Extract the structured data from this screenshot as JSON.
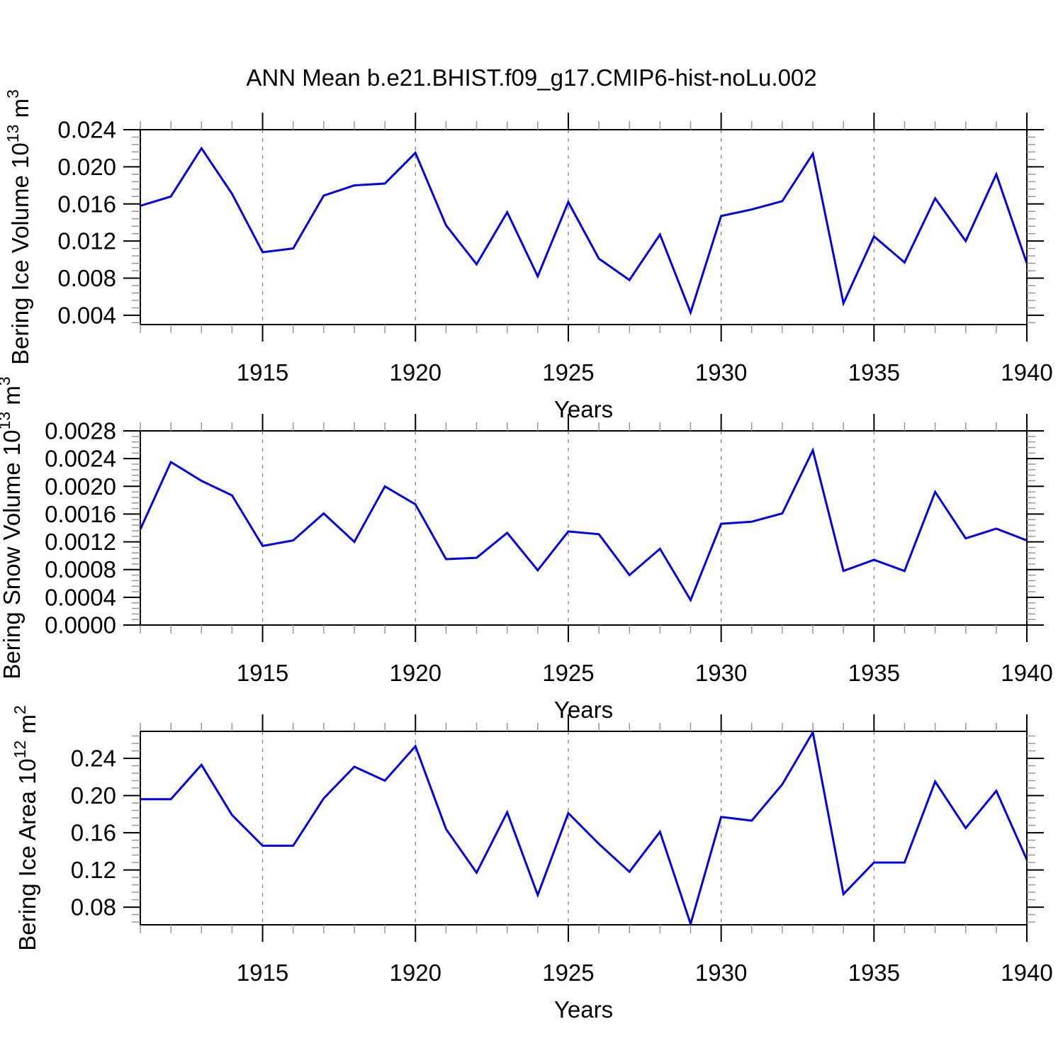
{
  "title": "ANN Mean b.e21.BHIST.f09_g17.CMIP6-hist-noLu.002",
  "colors": {
    "line": "#0000ee",
    "grid": "#7a7a7a",
    "axis": "#000000",
    "minor_tick": "#989898",
    "background": "#ffffff"
  },
  "chart_data": {
    "type": "line",
    "title": "ANN Mean b.e21.BHIST.f09_g17.CMIP6-hist-noLu.002",
    "x_label": "Years",
    "xlim": [
      1911,
      1940
    ],
    "x_major_ticks": [
      1915,
      1920,
      1925,
      1930,
      1935,
      1940
    ],
    "x_gridlines": [
      1915,
      1920,
      1925,
      1930,
      1935
    ],
    "x_minor_step": 1,
    "grid_style": "dashed-vertical",
    "legend": "none",
    "x": [
      1911,
      1912,
      1913,
      1914,
      1915,
      1916,
      1917,
      1918,
      1919,
      1920,
      1921,
      1922,
      1923,
      1924,
      1925,
      1926,
      1927,
      1928,
      1929,
      1930,
      1931,
      1932,
      1933,
      1934,
      1935,
      1936,
      1937,
      1938,
      1939,
      1940
    ],
    "panels": [
      {
        "name": "bering-ice-volume",
        "ylabel": "Bering Ice Volume 10^13 m^3",
        "ylabel_parts": [
          {
            "t": "Bering Ice Volume 10"
          },
          {
            "t": "13",
            "sup": true
          },
          {
            "t": " m"
          },
          {
            "t": "3",
            "sup": true
          }
        ],
        "ylim": [
          0.003,
          0.024
        ],
        "minor_step": 0.0008,
        "yticks": [
          {
            "v": 0.004,
            "label": "0.004"
          },
          {
            "v": 0.008,
            "label": "0.008"
          },
          {
            "v": 0.012,
            "label": "0.012"
          },
          {
            "v": 0.016,
            "label": "0.016"
          },
          {
            "v": 0.02,
            "label": "0.020"
          },
          {
            "v": 0.024,
            "label": "0.024"
          }
        ],
        "values": [
          0.0158,
          0.0168,
          0.022,
          0.0171,
          0.0108,
          0.0112,
          0.0169,
          0.018,
          0.0182,
          0.0215,
          0.0137,
          0.0095,
          0.0151,
          0.0082,
          0.0162,
          0.0101,
          0.0078,
          0.0127,
          0.0043,
          0.0147,
          0.0154,
          0.0163,
          0.0214,
          0.0053,
          0.0125,
          0.0097,
          0.0166,
          0.012,
          0.0192,
          0.0096
        ]
      },
      {
        "name": "bering-snow-volume",
        "ylabel": "Bering Snow Volume 10^13 m^3",
        "ylabel_parts": [
          {
            "t": "Bering Snow Volume 10"
          },
          {
            "t": "13",
            "sup": true
          },
          {
            "t": " m"
          },
          {
            "t": "3",
            "sup": true
          }
        ],
        "ylim": [
          0.0,
          0.0028
        ],
        "minor_step": 8e-05,
        "yticks": [
          {
            "v": 0.0,
            "label": "0.0000"
          },
          {
            "v": 0.0004,
            "label": "0.0004"
          },
          {
            "v": 0.0008,
            "label": "0.0008"
          },
          {
            "v": 0.0012,
            "label": "0.0012"
          },
          {
            "v": 0.0016,
            "label": "0.0016"
          },
          {
            "v": 0.002,
            "label": "0.0020"
          },
          {
            "v": 0.0024,
            "label": "0.0024"
          },
          {
            "v": 0.0028,
            "label": "0.0028"
          }
        ],
        "values": [
          0.00138,
          0.00235,
          0.00208,
          0.00187,
          0.00114,
          0.00122,
          0.00161,
          0.0012,
          0.002,
          0.00174,
          0.00095,
          0.00097,
          0.00133,
          0.00079,
          0.00135,
          0.00131,
          0.00072,
          0.0011,
          0.00036,
          0.00146,
          0.00149,
          0.00161,
          0.00252,
          0.00078,
          0.00094,
          0.00078,
          0.00192,
          0.00125,
          0.00139,
          0.00122
        ]
      },
      {
        "name": "bering-ice-area",
        "ylabel": "Bering Ice Area 10^12 m^2",
        "ylabel_parts": [
          {
            "t": "Bering Ice Area 10"
          },
          {
            "t": "12",
            "sup": true
          },
          {
            "t": " m"
          },
          {
            "t": "2",
            "sup": true
          }
        ],
        "ylim": [
          0.061,
          0.269
        ],
        "minor_step": 0.008,
        "yticks": [
          {
            "v": 0.08,
            "label": "0.08"
          },
          {
            "v": 0.12,
            "label": "0.12"
          },
          {
            "v": 0.16,
            "label": "0.16"
          },
          {
            "v": 0.2,
            "label": "0.20"
          },
          {
            "v": 0.24,
            "label": "0.24"
          }
        ],
        "values": [
          0.196,
          0.196,
          0.233,
          0.179,
          0.146,
          0.146,
          0.197,
          0.231,
          0.216,
          0.253,
          0.164,
          0.117,
          0.182,
          0.093,
          0.181,
          0.148,
          0.118,
          0.161,
          0.062,
          0.177,
          0.173,
          0.212,
          0.268,
          0.094,
          0.128,
          0.128,
          0.215,
          0.165,
          0.205,
          0.131
        ]
      }
    ]
  }
}
